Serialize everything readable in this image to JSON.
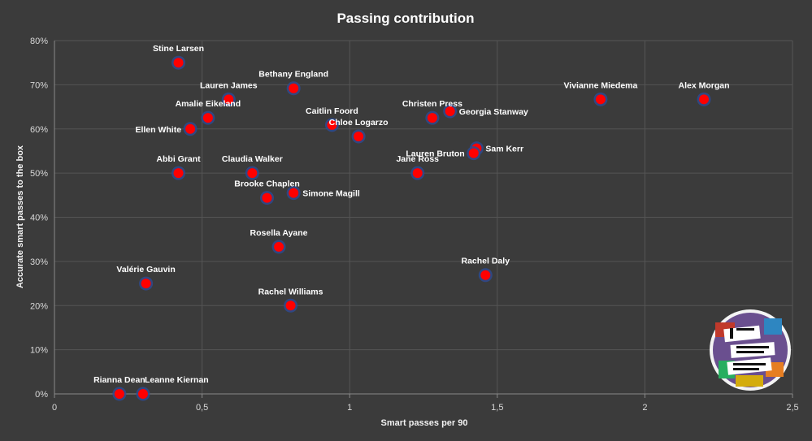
{
  "chart_data": {
    "type": "scatter",
    "title": "Passing contribution",
    "xlabel": "Smart passes per 90",
    "ylabel": "Accurate smart passes to the box",
    "xlim": [
      0,
      2.5
    ],
    "ylim": [
      0,
      80
    ],
    "x_ticks": [
      0,
      0.5,
      1,
      1.5,
      2,
      2.5
    ],
    "x_tick_labels": [
      "0",
      "0,5",
      "1",
      "1,5",
      "2",
      "2,5"
    ],
    "y_ticks": [
      0,
      10,
      20,
      30,
      40,
      50,
      60,
      70,
      80
    ],
    "y_tick_labels": [
      "0%",
      "10%",
      "20%",
      "30%",
      "40%",
      "50%",
      "60%",
      "70%",
      "80%"
    ],
    "grid": true,
    "marker_color": "#ff0000",
    "marker_edge_color": "#2e4a8f",
    "points": [
      {
        "name": "Stine Larsen",
        "x": 0.42,
        "y": 75,
        "label_pos": "above"
      },
      {
        "name": "Bethany England",
        "x": 0.81,
        "y": 69.2,
        "label_pos": "above"
      },
      {
        "name": "Lauren James",
        "x": 0.59,
        "y": 66.7,
        "label_pos": "above"
      },
      {
        "name": "Amalie Eikeland",
        "x": 0.52,
        "y": 62.5,
        "label_pos": "above"
      },
      {
        "name": "Ellen White",
        "x": 0.46,
        "y": 60,
        "label_pos": "left"
      },
      {
        "name": "Caitlin Foord",
        "x": 0.94,
        "y": 60.9,
        "label_pos": "above"
      },
      {
        "name": "Chloe Logarzo",
        "x": 1.03,
        "y": 58.3,
        "label_pos": "above"
      },
      {
        "name": "Christen Press",
        "x": 1.28,
        "y": 62.5,
        "label_pos": "above"
      },
      {
        "name": "Georgia Stanway",
        "x": 1.34,
        "y": 64,
        "label_pos": "right"
      },
      {
        "name": "Vivianne Miedema",
        "x": 1.85,
        "y": 66.7,
        "label_pos": "above"
      },
      {
        "name": "Alex Morgan",
        "x": 2.2,
        "y": 66.7,
        "label_pos": "above"
      },
      {
        "name": "Sam Kerr",
        "x": 1.43,
        "y": 55.6,
        "label_pos": "right"
      },
      {
        "name": "Lauren Bruton",
        "x": 1.42,
        "y": 54.5,
        "label_pos": "left"
      },
      {
        "name": "Jane Ross",
        "x": 1.23,
        "y": 50,
        "label_pos": "above"
      },
      {
        "name": "Abbi Grant",
        "x": 0.42,
        "y": 50,
        "label_pos": "above"
      },
      {
        "name": "Claudia Walker",
        "x": 0.67,
        "y": 50,
        "label_pos": "above"
      },
      {
        "name": "Brooke Chaplen",
        "x": 0.72,
        "y": 44.4,
        "label_pos": "above"
      },
      {
        "name": "Simone Magill",
        "x": 0.81,
        "y": 45.5,
        "label_pos": "right"
      },
      {
        "name": "Rosella Ayane",
        "x": 0.76,
        "y": 33.3,
        "label_pos": "above"
      },
      {
        "name": "Valérie Gauvin",
        "x": 0.31,
        "y": 25,
        "label_pos": "above"
      },
      {
        "name": "Rachel Daly",
        "x": 1.46,
        "y": 26.9,
        "label_pos": "above"
      },
      {
        "name": "Rachel Williams",
        "x": 0.8,
        "y": 20,
        "label_pos": "above"
      },
      {
        "name": "Rianna Dean",
        "x": 0.22,
        "y": 0,
        "label_pos": "above"
      },
      {
        "name": "Leanne Kiernan",
        "x": 0.3,
        "y": 0,
        "label_pos": "above-right"
      }
    ]
  }
}
